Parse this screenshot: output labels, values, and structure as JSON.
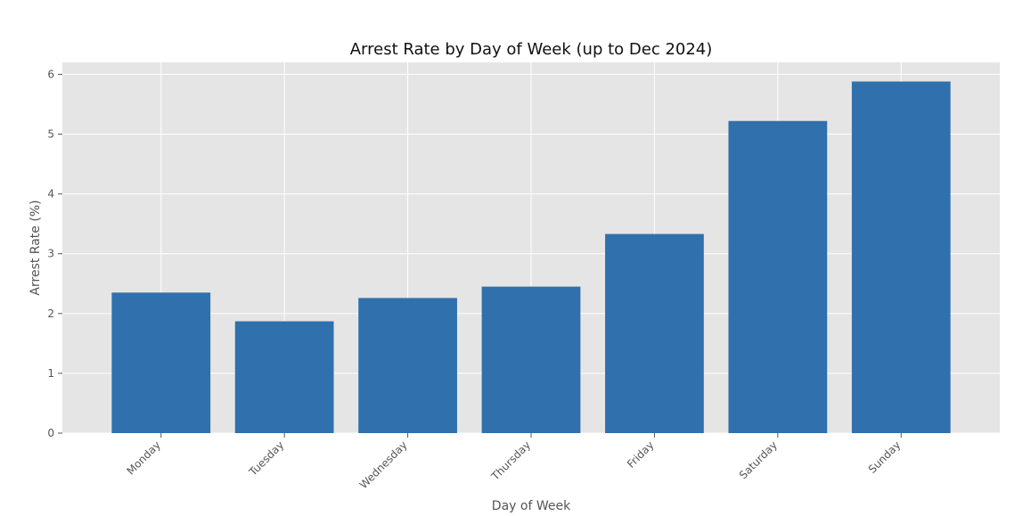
{
  "chart_data": {
    "type": "bar",
    "title": "Arrest Rate by Day of Week (up to Dec 2024)",
    "xlabel": "Day of Week",
    "ylabel": "Arrest Rate (%)",
    "categories": [
      "Monday",
      "Tuesday",
      "Wednesday",
      "Thursday",
      "Friday",
      "Saturday",
      "Sunday"
    ],
    "values": [
      2.35,
      1.87,
      2.26,
      2.45,
      3.33,
      5.22,
      5.88
    ],
    "ylim": [
      0,
      6.2
    ],
    "yticks": [
      "0",
      "1",
      "2",
      "3",
      "4",
      "5",
      "6"
    ],
    "grid": true,
    "colors": {
      "bar": "#3070ad",
      "plot_background": "#e5e5e5",
      "grid": "#ffffff"
    }
  }
}
